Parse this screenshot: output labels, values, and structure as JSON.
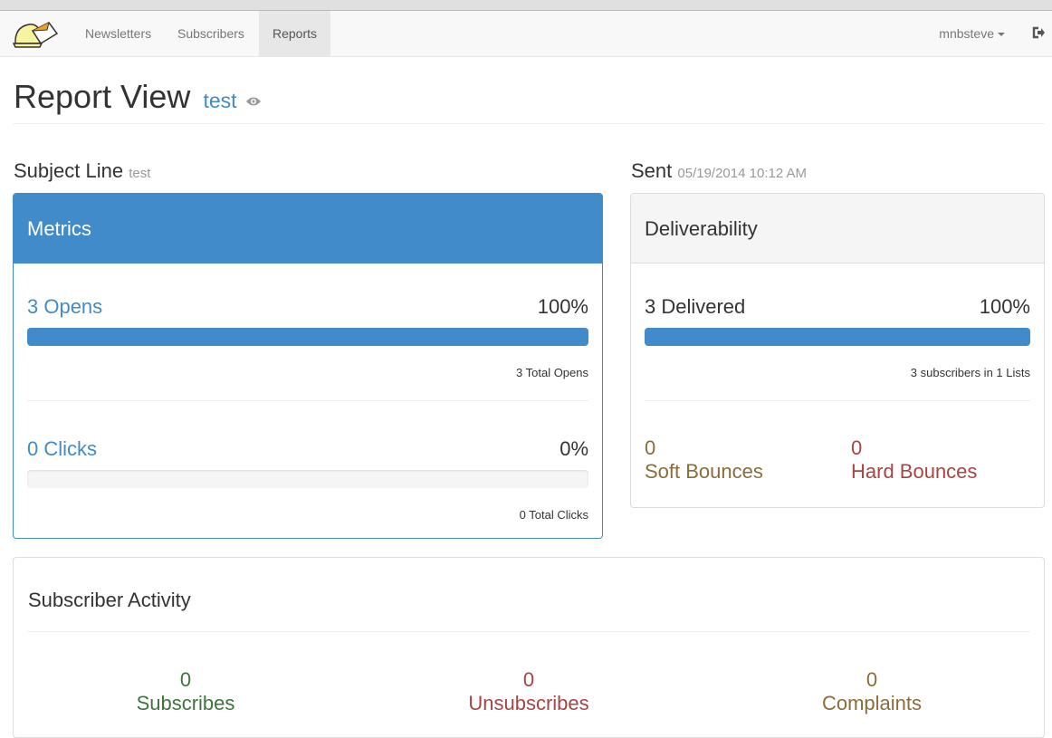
{
  "nav": {
    "items": [
      "Newsletters",
      "Subscribers",
      "Reports"
    ],
    "active": "Reports",
    "user": "mnbsteve"
  },
  "header": {
    "title": "Report View",
    "subtitle": "test"
  },
  "subject": {
    "label": "Subject Line",
    "value": "test"
  },
  "sent": {
    "label": "Sent",
    "value": "05/19/2014 10:12 AM"
  },
  "metrics": {
    "title": "Metrics",
    "opens": {
      "label": "3 Opens",
      "percent": "100%",
      "fill": 100,
      "note": "3 Total Opens"
    },
    "clicks": {
      "label": "0 Clicks",
      "percent": "0%",
      "fill": 0,
      "note": "0 Total Clicks"
    }
  },
  "deliverability": {
    "title": "Deliverability",
    "delivered": "3 Delivered",
    "percent": "100%",
    "fill": 100,
    "note": "3 subscribers in 1 Lists",
    "soft": {
      "count": "0",
      "label": "Soft Bounces"
    },
    "hard": {
      "count": "0",
      "label": "Hard Bounces"
    }
  },
  "activity": {
    "title": "Subscriber Activity",
    "subscribes": {
      "count": "0",
      "label": "Subscribes"
    },
    "unsubscribes": {
      "count": "0",
      "label": "Unsubscribes"
    },
    "complaints": {
      "count": "0",
      "label": "Complaints"
    }
  },
  "colors": {
    "primary": "#428bca",
    "warning": "#8a6d3b",
    "danger": "#a94442",
    "success": "#3c763d"
  }
}
